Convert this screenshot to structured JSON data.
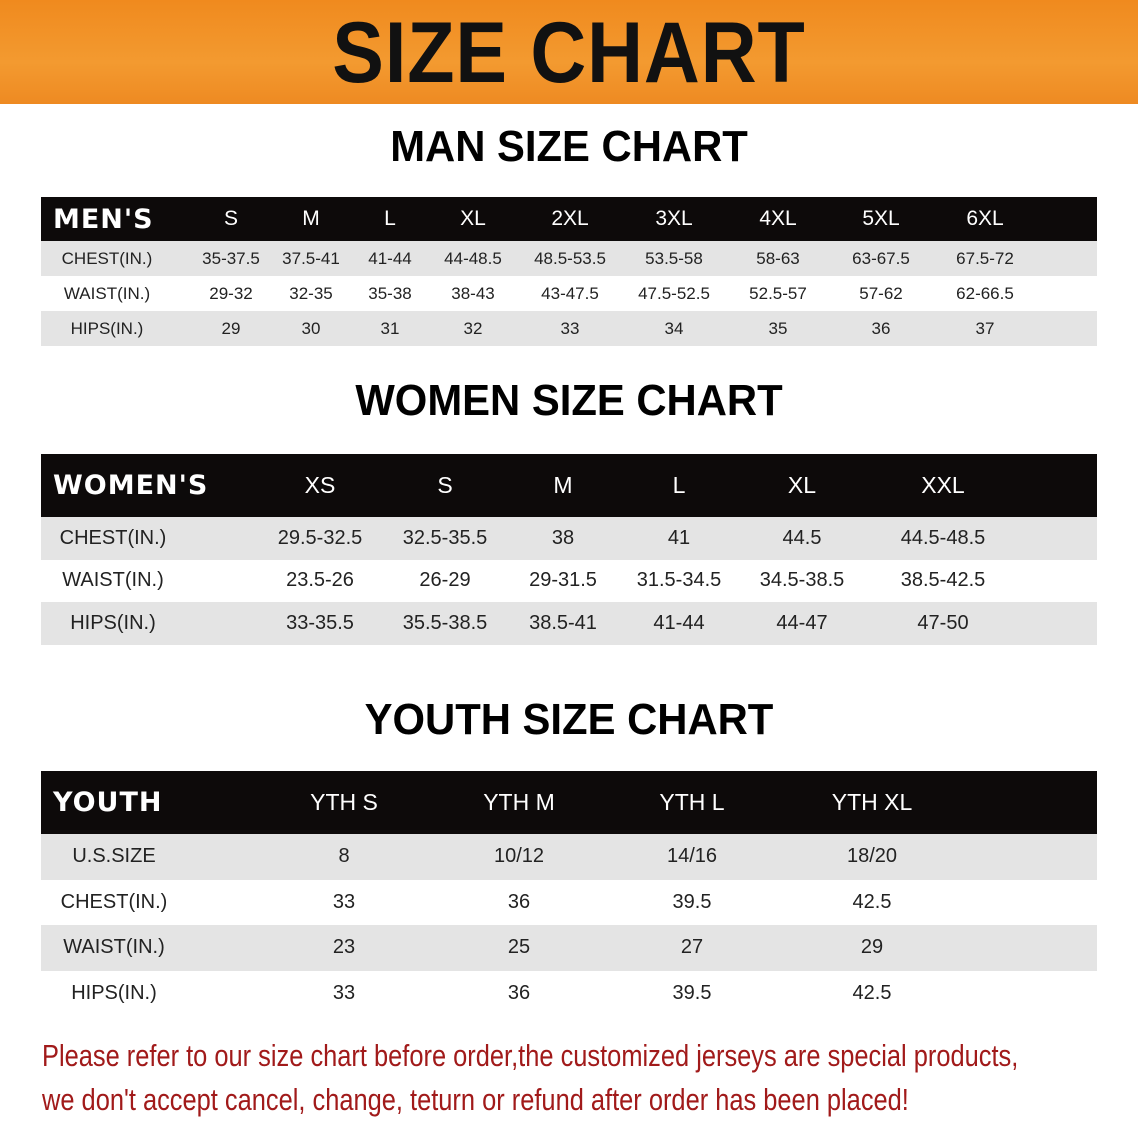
{
  "banner_title": "SIZE CHART",
  "tables": [
    {
      "title": "MAN SIZE CHART",
      "header_label": "MEN'S",
      "sizes": [
        "S",
        "M",
        "L",
        "XL",
        "2XL",
        "3XL",
        "4XL",
        "5XL",
        "6XL"
      ],
      "rows": [
        {
          "label": "CHEST(IN.)",
          "values": [
            "35-37.5",
            "37.5-41",
            "41-44",
            "44-48.5",
            "48.5-53.5",
            "53.5-58",
            "58-63",
            "63-67.5",
            "67.5-72"
          ]
        },
        {
          "label": "WAIST(IN.)",
          "values": [
            "29-32",
            "32-35",
            "35-38",
            "38-43",
            "43-47.5",
            "47.5-52.5",
            "52.5-57",
            "57-62",
            "62-66.5"
          ]
        },
        {
          "label": "HIPS(IN.)",
          "values": [
            "29",
            "30",
            "31",
            "32",
            "33",
            "34",
            "35",
            "36",
            "37"
          ]
        }
      ]
    },
    {
      "title": "WOMEN SIZE CHART",
      "header_label": "WOMEN'S",
      "sizes": [
        "XS",
        "S",
        "M",
        "L",
        "XL",
        "XXL"
      ],
      "rows": [
        {
          "label": "CHEST(IN.)",
          "values": [
            "29.5-32.5",
            "32.5-35.5",
            "38",
            "41",
            "44.5",
            "44.5-48.5"
          ]
        },
        {
          "label": "WAIST(IN.)",
          "values": [
            "23.5-26",
            "26-29",
            "29-31.5",
            "31.5-34.5",
            "34.5-38.5",
            "38.5-42.5"
          ]
        },
        {
          "label": "HIPS(IN.)",
          "values": [
            "33-35.5",
            "35.5-38.5",
            "38.5-41",
            "41-44",
            "44-47",
            "47-50"
          ]
        }
      ]
    },
    {
      "title": "YOUTH SIZE CHART",
      "header_label": "YOUTH",
      "sizes": [
        "YTH S",
        "YTH M",
        "YTH L",
        "YTH XL"
      ],
      "rows": [
        {
          "label": "U.S.SIZE",
          "values": [
            "8",
            "10/12",
            "14/16",
            "18/20"
          ]
        },
        {
          "label": "CHEST(IN.)",
          "values": [
            "33",
            "36",
            "39.5",
            "42.5"
          ]
        },
        {
          "label": "WAIST(IN.)",
          "values": [
            "23",
            "25",
            "27",
            "29"
          ]
        },
        {
          "label": "HIPS(IN.)",
          "values": [
            "33",
            "36",
            "39.5",
            "42.5"
          ]
        }
      ]
    }
  ],
  "notice": {
    "line1": "Please refer to our size chart before order,the customized jerseys are special products,",
    "line2": "we don't accept cancel, change, teturn or refund after order has been placed!"
  },
  "colors": {
    "banner": "#f08a1e",
    "header_bg": "#0d0a0a",
    "row_gray": "#e4e4e4",
    "notice": "#a11a1a"
  }
}
